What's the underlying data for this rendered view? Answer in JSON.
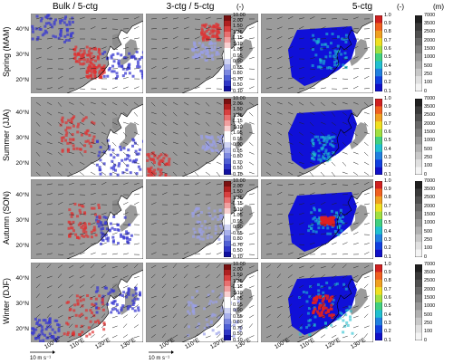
{
  "column_titles": [
    "Bulk / 5-ctg",
    "3-ctg / 5-ctg",
    "5-ctg"
  ],
  "units": {
    "ratio": "(-)",
    "rate": "(-)",
    "elevation": "(m)"
  },
  "row_labels": [
    "Spring (MAM)",
    "Summer (JJA)",
    "Autumn (SON)",
    "Winter (DJF)"
  ],
  "lat_labels": [
    "40°N",
    "30°N",
    "20°N"
  ],
  "lon_labels": [
    "100°E",
    "110°E",
    "120°E",
    "130°E"
  ],
  "wind_scale": "10 m s⁻¹",
  "ratio_ticks": [
    "10.00",
    "2.00",
    "1.50",
    "1.25",
    "1.15",
    "1.10",
    "1.05",
    "0.95",
    "0.90",
    "0.85",
    "0.80",
    "0.70",
    "0.50",
    "0.10"
  ],
  "rate_ticks": [
    "1.0",
    "0.9",
    "0.8",
    "0.7",
    "0.6",
    "0.5",
    "0.4",
    "0.3",
    "0.2",
    "0.1"
  ],
  "elev_ticks": [
    "7000",
    "3500",
    "2500",
    "2000",
    "1500",
    "1000",
    "500",
    "250",
    "100",
    "0"
  ],
  "colors": {
    "land_gray": "#8a8a8a",
    "ocean": "#ffffff",
    "ratio_red": "#e03030",
    "ratio_blue": "#3a3ad0",
    "rate_blue": "#1010d8",
    "rate_high": "#e02020"
  }
}
